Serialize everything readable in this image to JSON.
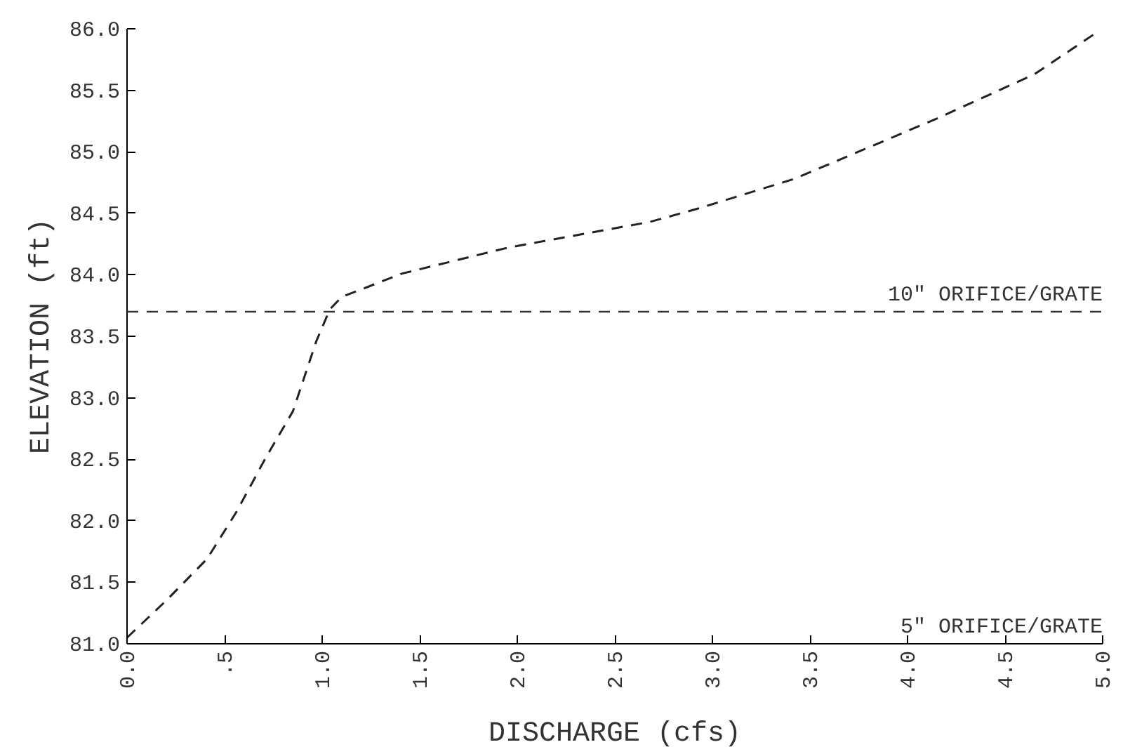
{
  "chart_data": {
    "type": "line",
    "xlabel": "DISCHARGE (cfs)",
    "ylabel": "ELEVATION (ft)",
    "x": [
      0.0,
      0.2,
      0.41,
      0.56,
      0.71,
      0.85,
      0.97,
      1.04,
      1.1,
      1.41,
      1.95,
      2.68,
      2.93,
      3.42,
      4.15,
      4.65,
      4.96
    ],
    "series": [
      {
        "color": "#222222",
        "values": [
          81.05,
          81.35,
          81.69,
          82.07,
          82.51,
          82.89,
          83.46,
          83.72,
          83.82,
          84.01,
          84.22,
          84.43,
          84.54,
          84.78,
          85.27,
          85.63,
          85.96
        ]
      }
    ],
    "line_style": "dashed",
    "marker": "none",
    "grid": false,
    "annotations": [
      "5\" ORIFICE/GRATE"
    ],
    "xlim": [
      0,
      5
    ],
    "ylim": [
      81,
      86
    ],
    "xticks": [
      {
        "value": 0,
        "label": "0.0"
      },
      {
        "value": 0.5,
        "label": ".5"
      },
      {
        "value": 1,
        "label": "1.0"
      },
      {
        "value": 1.5,
        "label": "1.5"
      },
      {
        "value": 2,
        "label": "2.0"
      },
      {
        "value": 2.5,
        "label": "2.5"
      },
      {
        "value": 3,
        "label": "3.0"
      },
      {
        "value": 3.5,
        "label": "3.5"
      },
      {
        "value": 4,
        "label": "4.0"
      },
      {
        "value": 4.5,
        "label": "4.5"
      },
      {
        "value": 5,
        "label": "5.0"
      }
    ],
    "yticks": [
      {
        "value": 81,
        "label": "81.0"
      },
      {
        "value": 81.5,
        "label": "81.5"
      },
      {
        "value": 82,
        "label": "82.0"
      },
      {
        "value": 82.5,
        "label": "82.5"
      },
      {
        "value": 83,
        "label": "83.0"
      },
      {
        "value": 83.5,
        "label": "83.5"
      },
      {
        "value": 84,
        "label": "84.0"
      },
      {
        "value": 84.5,
        "label": "84.5"
      },
      {
        "value": 85,
        "label": "85.0"
      },
      {
        "value": 85.5,
        "label": "85.5"
      },
      {
        "value": 86,
        "label": "86.0"
      }
    ],
    "ref_lines": [
      {
        "axis": "y",
        "value": 83.7,
        "label": "10\" ORIFICE/GRATE",
        "line_style": "dashed"
      }
    ]
  }
}
